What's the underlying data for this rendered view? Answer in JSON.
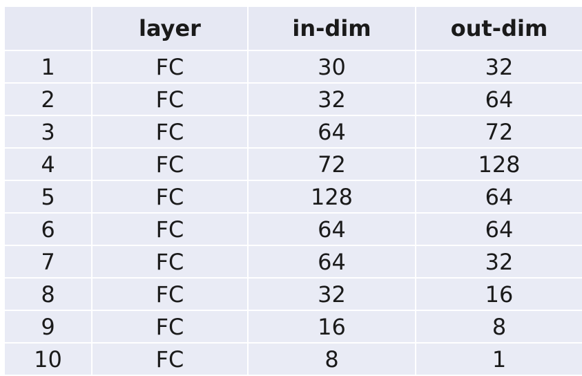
{
  "table": {
    "headers": [
      "",
      "layer",
      "in-dim",
      "out-dim"
    ],
    "rows": [
      [
        "1",
        "FC",
        "30",
        "32"
      ],
      [
        "2",
        "FC",
        "32",
        "64"
      ],
      [
        "3",
        "FC",
        "64",
        "72"
      ],
      [
        "4",
        "FC",
        "72",
        "128"
      ],
      [
        "5",
        "FC",
        "128",
        "64"
      ],
      [
        "6",
        "FC",
        "64",
        "64"
      ],
      [
        "7",
        "FC",
        "64",
        "32"
      ],
      [
        "8",
        "FC",
        "32",
        "16"
      ],
      [
        "9",
        "FC",
        "16",
        "8"
      ],
      [
        "10",
        "FC",
        "8",
        "1"
      ]
    ]
  },
  "colors": {
    "cell_background": "#e9ebf5",
    "grid_lines": "#ffffff",
    "text": "#1a1a1a"
  }
}
